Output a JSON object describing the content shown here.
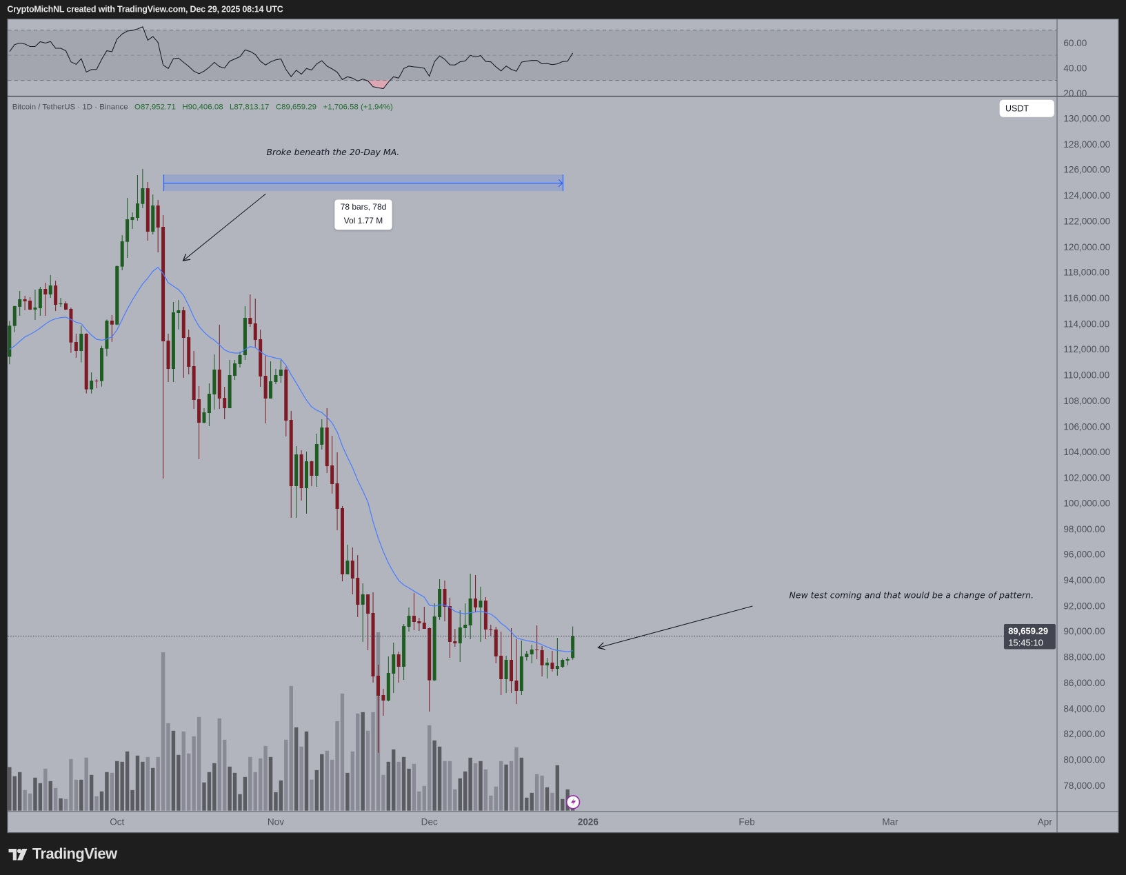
{
  "header": {
    "title": "CryptoMichNL created with TradingView.com, Dec 29, 2025 08:14 UTC"
  },
  "legend": {
    "symbol": "Bitcoin / TetherUS · 1D · Binance",
    "open": "O87,952.71",
    "high": "H90,406.08",
    "low": "L87,813.17",
    "close": "C89,659.29",
    "change": "+1,706.58 (+1.94%)"
  },
  "currency_button": "USDT",
  "last_price": {
    "value": "89,659.29",
    "countdown": "15:45:10",
    "price": 89659.29
  },
  "annotations": {
    "ma_note": "Broke beneath the 20-Day MA.",
    "range_bars": "78 bars, 78d",
    "range_volume": "Vol 1.77 M",
    "pattern_note": "New test coming and that would be a change of pattern."
  },
  "branding": {
    "logo_text": "TradingView"
  },
  "colors": {
    "up": "#1e5c22",
    "down": "#7d1a24",
    "ma": "#4a7dff",
    "volume_up": "#5b5c62",
    "volume_down": "#898a95",
    "rsi": "#131722",
    "rsi_oversold_fill": "#e7a3b0",
    "range": "#2962ff",
    "background": "#b2b5be"
  },
  "chart_data": {
    "type": "candlestick",
    "symbol": "Bitcoin / TetherUS",
    "interval": "1D",
    "exchange": "Binance",
    "grid": false,
    "price_axis": {
      "labels": [
        "130,000.00",
        "128,000.00",
        "126,000.00",
        "124,000.00",
        "122,000.00",
        "120,000.00",
        "118,000.00",
        "116,000.00",
        "114,000.00",
        "112,000.00",
        "110,000.00",
        "108,000.00",
        "106,000.00",
        "104,000.00",
        "102,000.00",
        "100,000.00",
        "98,000.00",
        "96,000.00",
        "94,000.00",
        "92,000.00",
        "90,000.00",
        "88,000.00",
        "86,000.00",
        "84,000.00",
        "82,000.00",
        "80,000.00",
        "78,000.00"
      ],
      "ylim": [
        76000,
        132000
      ]
    },
    "time_axis": [
      {
        "date": "2025-10-01",
        "label": "Oct"
      },
      {
        "date": "2025-11-01",
        "label": "Nov"
      },
      {
        "date": "2025-12-01",
        "label": "Dec"
      },
      {
        "date": "2026-01-01",
        "label": "2026",
        "year": true
      },
      {
        "date": "2026-02-01",
        "label": "Feb"
      },
      {
        "date": "2026-03-01",
        "label": "Mar"
      },
      {
        "date": "2026-04-01",
        "label": "Apr"
      }
    ],
    "rsi_axis": {
      "labels": [
        "60.00",
        "40.00",
        "20.00"
      ],
      "band": [
        30,
        70
      ],
      "mid": 50
    },
    "columns": [
      "date",
      "open",
      "high",
      "low",
      "close",
      "volume"
    ],
    "candles": [
      [
        "2025-09-10",
        111440,
        114236,
        110849,
        113859,
        19000
      ],
      [
        "2025-09-11",
        113841,
        115418,
        113357,
        115382,
        15000
      ],
      [
        "2025-09-12",
        115329,
        116565,
        114630,
        115920,
        16800
      ],
      [
        "2025-09-13",
        115920,
        116189,
        115060,
        115759,
        9000
      ],
      [
        "2025-09-14",
        115812,
        116081,
        115060,
        115114,
        7500
      ],
      [
        "2025-09-15",
        115114,
        116673,
        114307,
        115275,
        14400
      ],
      [
        "2025-09-16",
        115221,
        116888,
        114630,
        116726,
        12000
      ],
      [
        "2025-09-17",
        116726,
        117210,
        114630,
        116296,
        18300
      ],
      [
        "2025-09-18",
        116296,
        117802,
        116027,
        116995,
        12900
      ],
      [
        "2025-09-19",
        116995,
        117371,
        115006,
        115490,
        9900
      ],
      [
        "2025-09-20",
        115544,
        116027,
        115329,
        115597,
        5400
      ],
      [
        "2025-09-21",
        115597,
        115759,
        115060,
        115114,
        5100
      ],
      [
        "2025-09-22",
        115167,
        115275,
        111745,
        112551,
        22500
      ],
      [
        "2025-09-23",
        112587,
        113232,
        111368,
        111888,
        13500
      ],
      [
        "2025-09-24",
        111888,
        113859,
        110992,
        113232,
        13500
      ],
      [
        "2025-09-25",
        113232,
        113268,
        108573,
        108896,
        23100
      ],
      [
        "2025-09-26",
        108896,
        110221,
        108573,
        109576,
        15600
      ],
      [
        "2025-09-27",
        109576,
        109684,
        108995,
        109522,
        6300
      ],
      [
        "2025-09-28",
        109540,
        112282,
        109111,
        112103,
        8400
      ],
      [
        "2025-09-29",
        112067,
        114343,
        111476,
        114253,
        16800
      ],
      [
        "2025-09-30",
        114253,
        114683,
        112605,
        113949,
        16500
      ],
      [
        "2025-10-01",
        113949,
        118554,
        113895,
        118500,
        21600
      ],
      [
        "2025-10-02",
        118465,
        120920,
        118178,
        120436,
        21300
      ],
      [
        "2025-10-03",
        120400,
        123823,
        119146,
        122156,
        25800
      ],
      [
        "2025-10-04",
        122102,
        122694,
        121403,
        122317,
        9000
      ],
      [
        "2025-10-05",
        122264,
        125597,
        122049,
        123393,
        24000
      ],
      [
        "2025-10-06",
        123357,
        126081,
        123016,
        124575,
        21300
      ],
      [
        "2025-10-07",
        124575,
        125059,
        120490,
        121188,
        23400
      ],
      [
        "2025-10-08",
        121188,
        124092,
        120973,
        123231,
        18600
      ],
      [
        "2025-10-09",
        123231,
        123661,
        119576,
        121511,
        23400
      ],
      [
        "2025-10-10",
        121565,
        122479,
        101942,
        112641,
        69000
      ],
      [
        "2025-10-11",
        112695,
        113232,
        109469,
        110490,
        38100
      ],
      [
        "2025-10-12",
        110490,
        115705,
        109469,
        114899,
        34800
      ],
      [
        "2025-10-13",
        114845,
        115866,
        113573,
        115060,
        24300
      ],
      [
        "2025-10-14",
        115060,
        115329,
        109792,
        112910,
        34500
      ],
      [
        "2025-10-15",
        112963,
        113555,
        110060,
        110652,
        24900
      ],
      [
        "2025-10-16",
        110705,
        111888,
        107372,
        108071,
        32400
      ],
      [
        "2025-10-17",
        108125,
        109146,
        103448,
        106297,
        40800
      ],
      [
        "2025-10-18",
        106297,
        107426,
        106243,
        107103,
        12300
      ],
      [
        "2025-10-19",
        107050,
        109361,
        106028,
        108555,
        16800
      ],
      [
        "2025-10-20",
        108501,
        111619,
        107318,
        110437,
        20700
      ],
      [
        "2025-10-21",
        110437,
        113931,
        107372,
        108179,
        40200
      ],
      [
        "2025-10-22",
        108232,
        109093,
        106566,
        107426,
        30900
      ],
      [
        "2025-10-23",
        107426,
        111189,
        107426,
        110007,
        19200
      ],
      [
        "2025-10-24",
        109953,
        111189,
        109630,
        110920,
        16500
      ],
      [
        "2025-10-25",
        110867,
        111834,
        110598,
        111566,
        7200
      ],
      [
        "2025-10-26",
        111566,
        115383,
        111189,
        114469,
        14700
      ],
      [
        "2025-10-27",
        114469,
        116297,
        113770,
        113985,
        23400
      ],
      [
        "2025-10-28",
        114039,
        115974,
        112157,
        112748,
        16800
      ],
      [
        "2025-10-29",
        112802,
        113555,
        109093,
        109899,
        22800
      ],
      [
        "2025-10-30",
        109953,
        111512,
        106243,
        108179,
        28200
      ],
      [
        "2025-10-31",
        108179,
        111082,
        108179,
        109523,
        23400
      ],
      [
        "2025-11-01",
        109469,
        110490,
        109308,
        110007,
        8100
      ],
      [
        "2025-11-02",
        109953,
        111189,
        109415,
        110437,
        13200
      ],
      [
        "2025-11-03",
        110437,
        110652,
        105222,
        106458,
        30900
      ],
      [
        "2025-11-04",
        106512,
        107211,
        98878,
        101351,
        54300
      ],
      [
        "2025-11-05",
        101351,
        104469,
        98878,
        103824,
        36300
      ],
      [
        "2025-11-06",
        103824,
        104147,
        100222,
        101190,
        27900
      ],
      [
        "2025-11-07",
        101190,
        104039,
        99201,
        103286,
        34500
      ],
      [
        "2025-11-08",
        103286,
        103340,
        101351,
        102157,
        13500
      ],
      [
        "2025-11-09",
        102157,
        105437,
        101297,
        104630,
        17700
      ],
      [
        "2025-11-10",
        104577,
        106566,
        104200,
        105921,
        24600
      ],
      [
        "2025-11-11",
        105921,
        107426,
        102373,
        102910,
        26100
      ],
      [
        "2025-11-12",
        102964,
        105276,
        100760,
        101512,
        22200
      ],
      [
        "2025-11-13",
        101566,
        103985,
        97910,
        99577,
        39000
      ],
      [
        "2025-11-14",
        99631,
        99792,
        93932,
        94470,
        51000
      ],
      [
        "2025-11-15",
        94470,
        96782,
        94470,
        95545,
        16500
      ],
      [
        "2025-11-16",
        95545,
        96566,
        92911,
        94147,
        25800
      ],
      [
        "2025-11-17",
        94201,
        95975,
        91137,
        92104,
        42300
      ],
      [
        "2025-11-18",
        92104,
        93771,
        89201,
        92911,
        42900
      ],
      [
        "2025-11-19",
        92911,
        92911,
        88556,
        91406,
        34800
      ],
      [
        "2025-11-20",
        91459,
        93072,
        86029,
        86513,
        42900
      ],
      [
        "2025-11-21",
        86567,
        87427,
        80563,
        85008,
        77700
      ],
      [
        "2025-11-22",
        85062,
        85546,
        83449,
        84632,
        15600
      ],
      [
        "2025-11-23",
        84632,
        88072,
        84578,
        86782,
        21300
      ],
      [
        "2025-11-24",
        86729,
        89147,
        85223,
        88234,
        26700
      ],
      [
        "2025-11-25",
        88234,
        88449,
        86029,
        87266,
        21300
      ],
      [
        "2025-11-26",
        87266,
        90599,
        86244,
        90438,
        23400
      ],
      [
        "2025-11-27",
        90384,
        91890,
        90008,
        91244,
        18300
      ],
      [
        "2025-11-28",
        91244,
        93019,
        90115,
        90760,
        20400
      ],
      [
        "2025-11-29",
        90814,
        91083,
        90061,
        90653,
        8400
      ],
      [
        "2025-11-30",
        90707,
        91943,
        90223,
        90223,
        10800
      ],
      [
        "2025-12-01",
        90277,
        90331,
        83772,
        86209,
        37200
      ],
      [
        "2025-12-02",
        86209,
        92212,
        86155,
        91191,
        30600
      ],
      [
        "2025-12-03",
        91137,
        94094,
        90922,
        93341,
        27900
      ],
      [
        "2025-12-04",
        93341,
        93986,
        90814,
        91943,
        21600
      ],
      [
        "2025-12-05",
        91997,
        92642,
        87965,
        89202,
        21600
      ],
      [
        "2025-12-06",
        89255,
        90223,
        88825,
        89094,
        9300
      ],
      [
        "2025-12-07",
        89094,
        91675,
        87643,
        90331,
        14100
      ],
      [
        "2025-12-08",
        90277,
        92212,
        89524,
        90546,
        17100
      ],
      [
        "2025-12-09",
        90492,
        94524,
        89417,
        92589,
        23100
      ],
      [
        "2025-12-10",
        92589,
        94416,
        91513,
        91890,
        20700
      ],
      [
        "2025-12-11",
        91890,
        93502,
        89202,
        92427,
        21600
      ],
      [
        "2025-12-12",
        92427,
        92696,
        89417,
        90169,
        18000
      ],
      [
        "2025-12-13",
        90223,
        90546,
        89685,
        90169,
        6600
      ],
      [
        "2025-12-14",
        90169,
        90384,
        87535,
        88073,
        10500
      ],
      [
        "2025-12-15",
        88127,
        90008,
        85062,
        86299,
        21600
      ],
      [
        "2025-12-16",
        86299,
        88127,
        85223,
        87804,
        20100
      ],
      [
        "2025-12-17",
        87804,
        90277,
        85223,
        86137,
        21600
      ],
      [
        "2025-12-18",
        86191,
        89417,
        84363,
        85385,
        27600
      ],
      [
        "2025-12-19",
        85385,
        89309,
        85062,
        88073,
        23100
      ],
      [
        "2025-12-20",
        88019,
        88503,
        87750,
        88288,
        5700
      ],
      [
        "2025-12-21",
        88234,
        88987,
        87535,
        88610,
        7800
      ],
      [
        "2025-12-22",
        88610,
        90492,
        87858,
        88557,
        15900
      ],
      [
        "2025-12-23",
        88557,
        88879,
        86514,
        87374,
        15300
      ],
      [
        "2025-12-24",
        87374,
        87965,
        86352,
        87589,
        10200
      ],
      [
        "2025-12-25",
        87589,
        88503,
        86890,
        87105,
        7800
      ],
      [
        "2025-12-26",
        87105,
        89524,
        86567,
        87320,
        19800
      ],
      [
        "2025-12-27",
        87266,
        87911,
        87159,
        87804,
        5100
      ],
      [
        "2025-12-28",
        87750,
        88019,
        87374,
        87858,
        9300
      ],
      [
        "2025-12-29",
        87952.71,
        90406.08,
        87813.17,
        89659.29,
        4800
      ]
    ],
    "ma20": [
      112014,
      112282,
      112641,
      112981,
      113178,
      113411,
      113680,
      113985,
      114253,
      114397,
      114487,
      114522,
      114343,
      114128,
      114021,
      113537,
      113125,
      112802,
      112731,
      112820,
      112999,
      113537,
      114343,
      115150,
      115866,
      116493,
      117120,
      117569,
      118106,
      118411,
      117927,
      117210,
      116942,
      116673,
      116225,
      115418,
      114522,
      113806,
      113358,
      112999,
      112730,
      112372,
      111978,
      111798,
      111727,
      111727,
      112014,
      112229,
      112157,
      111834,
      111548,
      111440,
      111333,
      111261,
      110759,
      110042,
      109400,
      108700,
      108050,
      107533,
      107265,
      107085,
      106727,
      106279,
      105562,
      104487,
      103591,
      102785,
      101799,
      100993,
      100097,
      98574,
      97319,
      96244,
      95348,
      94631,
      94004,
      93646,
      93413,
      93162,
      92929,
      92696,
      92069,
      91997,
      92087,
      92069,
      91890,
      91585,
      91460,
      91388,
      91478,
      91531,
      91603,
      91495,
      91370,
      91083,
      90653,
      90366,
      89972,
      89524,
      89399,
      89309,
      89237,
      89148,
      88987,
      88807,
      88646,
      88538,
      88485,
      88431,
      88521
    ],
    "rsi": [
      53,
      58.5,
      59.7,
      59,
      57,
      57,
      60.8,
      59.7,
      61,
      55.6,
      55.6,
      53.6,
      44.8,
      42.8,
      47.3,
      36.7,
      38.6,
      38.8,
      46.8,
      53.6,
      52.9,
      63,
      67,
      69.3,
      69.8,
      71,
      72.7,
      62,
      65,
      60.3,
      42.3,
      39.5,
      47.3,
      47.7,
      44.4,
      41.2,
      37.4,
      35.4,
      37.4,
      40.5,
      44.4,
      41,
      39.9,
      45.3,
      47.1,
      48.9,
      54.3,
      53.1,
      50.7,
      45.3,
      42.3,
      44.8,
      46.4,
      47.1,
      38.6,
      33,
      38.1,
      35,
      39.5,
      38.3,
      43.2,
      45.7,
      41.4,
      39.2,
      36.5,
      30.7,
      32.9,
      31.8,
      29.5,
      31.1,
      29.6,
      25,
      24.2,
      23.5,
      28.7,
      32.9,
      31.8,
      39.5,
      41.4,
      40.8,
      40.5,
      39.7,
      33.4,
      45,
      49.6,
      46.8,
      42.4,
      42.3,
      44.8,
      45.5,
      50,
      48.7,
      49.8,
      45.1,
      44.8,
      40.8,
      37.6,
      41.4,
      38.8,
      37.4,
      44.6,
      45.3,
      45.9,
      45.9,
      43.2,
      43.5,
      42.6,
      43.2,
      45,
      45.3,
      51.8
    ],
    "date_range": {
      "from": "2025-10-10",
      "to": "2025-12-27",
      "bars": 78,
      "volume": "1.77 M"
    }
  }
}
